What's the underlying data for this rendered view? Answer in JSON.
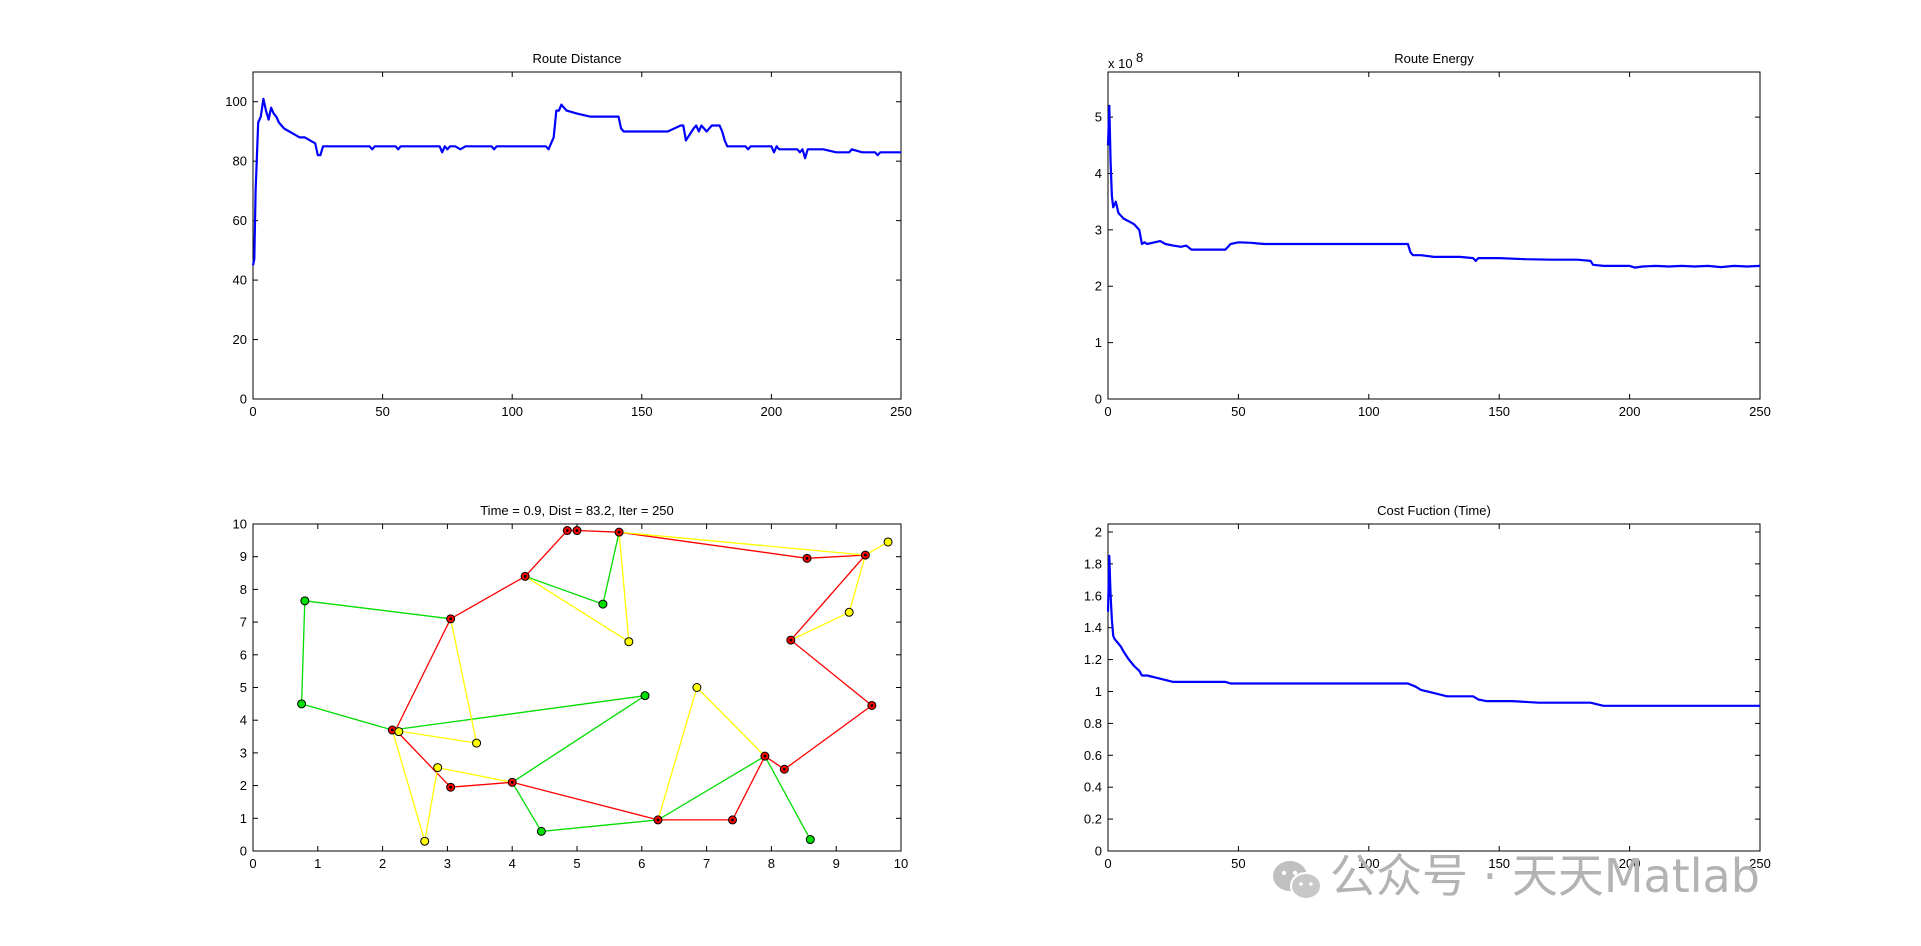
{
  "chart_data": [
    {
      "id": "dist",
      "type": "line",
      "title": "Route Distance",
      "xlim": [
        0,
        250
      ],
      "ylim": [
        0,
        110
      ],
      "xticks": [
        0,
        50,
        100,
        150,
        200,
        250
      ],
      "yticks": [
        0,
        20,
        40,
        60,
        80,
        100
      ],
      "color": "#0000ff",
      "series": [
        {
          "x": [
            0,
            0.5,
            1,
            2,
            3,
            4,
            5,
            6,
            7,
            8,
            9,
            10,
            11,
            12,
            14,
            16,
            18,
            20,
            22,
            24,
            25,
            26,
            27,
            30,
            35,
            40,
            45,
            46,
            47,
            50,
            55,
            56,
            57,
            60,
            65,
            70,
            72,
            73,
            74,
            75,
            76,
            78,
            80,
            82,
            84,
            85,
            90,
            92,
            93,
            94,
            95,
            100,
            105,
            110,
            113,
            114,
            115,
            116,
            117,
            118,
            119,
            120,
            121,
            125,
            130,
            135,
            140,
            141,
            142,
            143,
            145,
            150,
            155,
            160,
            165,
            166,
            167,
            170,
            171,
            172,
            173,
            175,
            177,
            178,
            180,
            181,
            182,
            183,
            185,
            190,
            191,
            192,
            195,
            200,
            201,
            202,
            203,
            205,
            210,
            211,
            212,
            213,
            214,
            215,
            220,
            225,
            230,
            231,
            235,
            240,
            241,
            242,
            245,
            250
          ],
          "y": [
            45,
            47,
            70,
            93,
            95,
            101,
            97,
            94,
            98,
            96,
            95,
            93,
            92,
            91,
            90,
            89,
            88,
            88,
            87,
            86,
            82,
            82,
            85,
            85,
            85,
            85,
            85,
            84,
            85,
            85,
            85,
            84,
            85,
            85,
            85,
            85,
            85,
            83,
            85,
            84,
            85,
            85,
            84,
            85,
            85,
            85,
            85,
            85,
            84,
            85,
            85,
            85,
            85,
            85,
            85,
            84,
            86,
            88,
            97,
            97,
            99,
            98,
            97,
            96,
            95,
            95,
            95,
            95,
            91,
            90,
            90,
            90,
            90,
            90,
            92,
            92,
            87,
            91,
            92,
            90,
            92,
            90,
            92,
            92,
            92,
            90,
            87,
            85,
            85,
            85,
            84,
            85,
            85,
            85,
            83,
            85,
            84,
            84,
            84,
            83,
            84,
            81,
            84,
            84,
            84,
            83,
            83,
            84,
            83,
            83,
            82,
            83,
            83,
            83
          ]
        }
      ]
    },
    {
      "id": "energy",
      "type": "line",
      "title": "Route Energy",
      "exponent_label": "x 10",
      "exponent_power": "8",
      "xlim": [
        0,
        250
      ],
      "ylim": [
        0,
        5.8
      ],
      "xticks": [
        0,
        50,
        100,
        150,
        200,
        250
      ],
      "yticks": [
        0,
        1,
        2,
        3,
        4,
        5
      ],
      "color": "#0000ff",
      "series": [
        {
          "x": [
            0,
            0.5,
            1,
            1.5,
            2,
            3,
            4,
            5,
            6,
            8,
            10,
            12,
            13,
            14,
            15,
            20,
            22,
            25,
            28,
            30,
            32,
            35,
            40,
            45,
            47,
            50,
            55,
            57,
            60,
            70,
            80,
            90,
            100,
            110,
            115,
            116,
            117,
            120,
            125,
            130,
            135,
            140,
            141,
            142,
            145,
            150,
            160,
            170,
            180,
            185,
            186,
            190,
            195,
            200,
            202,
            205,
            210,
            215,
            220,
            225,
            230,
            235,
            240,
            245,
            250
          ],
          "y": [
            4.5,
            5.2,
            4.2,
            3.6,
            3.4,
            3.5,
            3.3,
            3.25,
            3.2,
            3.15,
            3.1,
            3.0,
            2.75,
            2.78,
            2.75,
            2.8,
            2.75,
            2.72,
            2.7,
            2.72,
            2.65,
            2.65,
            2.65,
            2.65,
            2.75,
            2.78,
            2.77,
            2.76,
            2.75,
            2.75,
            2.75,
            2.75,
            2.75,
            2.75,
            2.75,
            2.6,
            2.55,
            2.55,
            2.52,
            2.52,
            2.52,
            2.5,
            2.45,
            2.5,
            2.5,
            2.5,
            2.48,
            2.47,
            2.47,
            2.45,
            2.38,
            2.36,
            2.36,
            2.36,
            2.33,
            2.35,
            2.36,
            2.35,
            2.36,
            2.35,
            2.36,
            2.34,
            2.36,
            2.35,
            2.36
          ]
        }
      ]
    },
    {
      "id": "route",
      "type": "scatter",
      "title": "Time = 0.9, Dist = 83.2, Iter = 250",
      "xlim": [
        0,
        10
      ],
      "ylim": [
        0,
        10
      ],
      "xticks": [
        0,
        1,
        2,
        3,
        4,
        5,
        6,
        7,
        8,
        9,
        10
      ],
      "yticks": [
        0,
        1,
        2,
        3,
        4,
        5,
        6,
        7,
        8,
        9,
        10
      ],
      "colors": {
        "red": "#ff0000",
        "green": "#00dd00",
        "yellow": "#ffff00"
      },
      "routes": [
        {
          "name": "red",
          "points": [
            [
              2.2,
              3.7
            ],
            [
              3.05,
              7.1
            ],
            [
              4.2,
              8.4
            ],
            [
              4.85,
              9.8
            ],
            [
              5.0,
              9.8
            ],
            [
              5.65,
              9.75
            ],
            [
              8.55,
              8.95
            ],
            [
              9.45,
              9.05
            ],
            [
              8.3,
              6.45
            ],
            [
              9.55,
              4.45
            ],
            [
              8.2,
              2.5
            ],
            [
              7.9,
              2.9
            ],
            [
              7.4,
              0.95
            ],
            [
              6.25,
              0.95
            ],
            [
              4.0,
              2.1
            ],
            [
              3.05,
              1.95
            ],
            [
              2.2,
              3.7
            ]
          ]
        },
        {
          "name": "green",
          "points": [
            [
              0.8,
              7.65
            ],
            [
              3.05,
              7.1
            ],
            [
              0.8,
              7.65
            ],
            [
              0.75,
              4.5
            ],
            [
              2.15,
              3.7
            ],
            [
              6.05,
              4.75
            ],
            [
              4.0,
              2.1
            ],
            [
              4.45,
              0.6
            ],
            [
              6.25,
              0.95
            ],
            [
              7.9,
              2.9
            ],
            [
              8.6,
              0.35
            ],
            [
              7.9,
              2.9
            ],
            [
              6.25,
              0.95
            ],
            [
              4.45,
              0.6
            ],
            [
              4.0,
              2.1
            ],
            [
              6.05,
              4.75
            ],
            [
              2.15,
              3.7
            ],
            [
              0.75,
              4.5
            ],
            [
              0.8,
              7.65
            ]
          ]
        },
        {
          "name": "green-b",
          "points": [
            [
              4.2,
              8.4
            ],
            [
              5.4,
              7.55
            ],
            [
              5.65,
              9.75
            ]
          ]
        },
        {
          "name": "yellow",
          "points": [
            [
              2.15,
              3.7
            ],
            [
              3.45,
              3.3
            ],
            [
              2.15,
              3.7
            ],
            [
              2.65,
              0.3
            ],
            [
              2.85,
              2.55
            ],
            [
              4.0,
              2.1
            ]
          ]
        },
        {
          "name": "yellow-b",
          "points": [
            [
              3.05,
              7.1
            ],
            [
              3.45,
              3.3
            ]
          ]
        },
        {
          "name": "yellow-c",
          "points": [
            [
              4.2,
              8.4
            ],
            [
              5.8,
              6.4
            ],
            [
              5.65,
              9.75
            ],
            [
              9.45,
              9.05
            ]
          ]
        },
        {
          "name": "yellow-d",
          "points": [
            [
              6.25,
              0.95
            ],
            [
              6.85,
              5.0
            ],
            [
              7.9,
              2.9
            ]
          ]
        },
        {
          "name": "yellow-e",
          "points": [
            [
              8.3,
              6.45
            ],
            [
              9.2,
              7.3
            ],
            [
              9.45,
              9.05
            ],
            [
              9.8,
              9.45
            ],
            [
              9.45,
              9.05
            ]
          ]
        }
      ],
      "nodes": [
        {
          "x": 4.85,
          "y": 9.8,
          "c": "red"
        },
        {
          "x": 5.0,
          "y": 9.8,
          "c": "red"
        },
        {
          "x": 5.65,
          "y": 9.75,
          "c": "red"
        },
        {
          "x": 8.55,
          "y": 8.95,
          "c": "red"
        },
        {
          "x": 9.45,
          "y": 9.05,
          "c": "red"
        },
        {
          "x": 9.8,
          "y": 9.45,
          "c": "yellow"
        },
        {
          "x": 4.2,
          "y": 8.4,
          "c": "red"
        },
        {
          "x": 0.8,
          "y": 7.65,
          "c": "green"
        },
        {
          "x": 5.4,
          "y": 7.55,
          "c": "green"
        },
        {
          "x": 9.2,
          "y": 7.3,
          "c": "yellow"
        },
        {
          "x": 3.05,
          "y": 7.1,
          "c": "red"
        },
        {
          "x": 8.3,
          "y": 6.45,
          "c": "red"
        },
        {
          "x": 5.8,
          "y": 6.4,
          "c": "yellow"
        },
        {
          "x": 6.85,
          "y": 5.0,
          "c": "yellow"
        },
        {
          "x": 6.05,
          "y": 4.75,
          "c": "green"
        },
        {
          "x": 0.75,
          "y": 4.5,
          "c": "green"
        },
        {
          "x": 9.55,
          "y": 4.45,
          "c": "red"
        },
        {
          "x": 2.15,
          "y": 3.7,
          "c": "red"
        },
        {
          "x": 2.25,
          "y": 3.65,
          "c": "yellow"
        },
        {
          "x": 3.45,
          "y": 3.3,
          "c": "yellow"
        },
        {
          "x": 7.9,
          "y": 2.9,
          "c": "red"
        },
        {
          "x": 2.85,
          "y": 2.55,
          "c": "yellow"
        },
        {
          "x": 8.2,
          "y": 2.5,
          "c": "red"
        },
        {
          "x": 4.0,
          "y": 2.1,
          "c": "red"
        },
        {
          "x": 3.05,
          "y": 1.95,
          "c": "red"
        },
        {
          "x": 6.25,
          "y": 0.95,
          "c": "red"
        },
        {
          "x": 7.4,
          "y": 0.95,
          "c": "red"
        },
        {
          "x": 4.45,
          "y": 0.6,
          "c": "green"
        },
        {
          "x": 8.6,
          "y": 0.35,
          "c": "green"
        },
        {
          "x": 2.65,
          "y": 0.3,
          "c": "yellow"
        }
      ]
    },
    {
      "id": "cost",
      "type": "line",
      "title": "Cost Fuction (Time)",
      "xlim": [
        0,
        250
      ],
      "ylim": [
        0,
        2.05
      ],
      "xticks": [
        0,
        50,
        100,
        150,
        200,
        250
      ],
      "yticks": [
        0,
        0.2,
        0.4,
        0.6,
        0.8,
        1,
        1.2,
        1.4,
        1.6,
        1.8,
        2
      ],
      "ytick_labels": [
        "0",
        "0.2",
        "0.4",
        "0.6",
        "0.8",
        "1",
        "1.2",
        "1.4",
        "1.6",
        "1.8",
        "2"
      ],
      "color": "#0000ff",
      "series": [
        {
          "x": [
            0,
            0.5,
            1,
            1.5,
            2,
            2.5,
            3,
            4,
            5,
            6,
            8,
            10,
            12,
            13,
            15,
            20,
            25,
            30,
            40,
            45,
            47,
            50,
            60,
            80,
            100,
            115,
            118,
            120,
            125,
            130,
            140,
            142,
            145,
            155,
            165,
            175,
            185,
            190,
            200,
            210,
            220,
            230,
            240,
            250
          ],
          "y": [
            1.5,
            1.85,
            1.6,
            1.45,
            1.35,
            1.33,
            1.32,
            1.3,
            1.28,
            1.25,
            1.2,
            1.16,
            1.13,
            1.1,
            1.1,
            1.08,
            1.06,
            1.06,
            1.06,
            1.06,
            1.05,
            1.05,
            1.05,
            1.05,
            1.05,
            1.05,
            1.03,
            1.01,
            0.99,
            0.97,
            0.97,
            0.95,
            0.94,
            0.94,
            0.93,
            0.93,
            0.93,
            0.91,
            0.91,
            0.91,
            0.91,
            0.91,
            0.91,
            0.91
          ]
        }
      ]
    }
  ],
  "watermark": {
    "text": "公众号 · 天天Matlab",
    "icon": "wechat-icon",
    "color": "#b3b3b3"
  }
}
